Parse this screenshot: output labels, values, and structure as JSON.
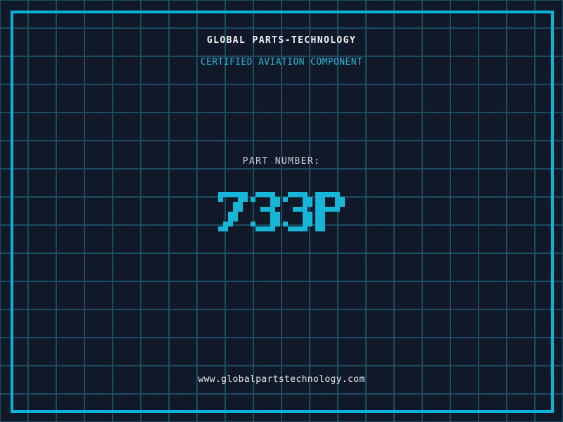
{
  "header": {
    "title": "GLOBAL PARTS-TECHNOLOGY",
    "subtitle": "CERTIFIED AVIATION COMPONENT"
  },
  "part": {
    "label": "PART NUMBER:",
    "value": "733P"
  },
  "footer": {
    "url": "www.globalpartstechnology.com"
  },
  "colors": {
    "background": "#111827",
    "grid_line": "#1a4c62",
    "frame_accent": "#0cb3d8",
    "title_text": "#f2f4f6",
    "subtitle_text": "#2ab7d8",
    "label_text": "#c7ced6",
    "part_number_text": "#16b6d8",
    "url_text": "#e8ebee"
  }
}
